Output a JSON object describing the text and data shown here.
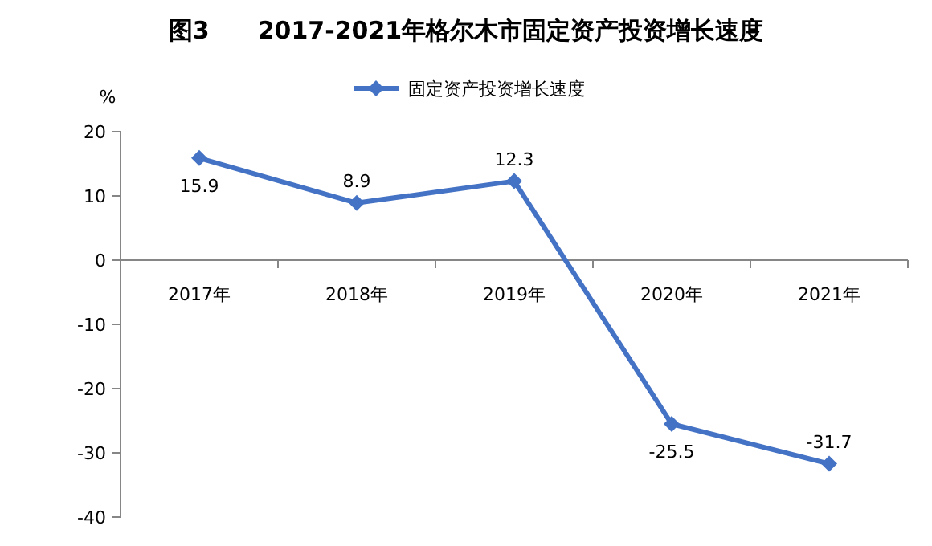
{
  "chart_data": {
    "type": "line",
    "title": "图3　　2017-2021年格尔木市固定资产投资增长速度",
    "ylabel": "%",
    "categories": [
      "2017年",
      "2018年",
      "2019年",
      "2020年",
      "2021年"
    ],
    "series": [
      {
        "name": "固定资产投资增长速度",
        "color": "#4472c4",
        "values": [
          15.9,
          8.9,
          12.3,
          -25.5,
          -31.7
        ]
      }
    ],
    "ylim": [
      -40,
      20
    ],
    "yticks": [
      -40,
      -30,
      -20,
      -10,
      0,
      10,
      20
    ],
    "data_labels": true,
    "legend": "top",
    "marker": "diamond",
    "grid": false
  }
}
